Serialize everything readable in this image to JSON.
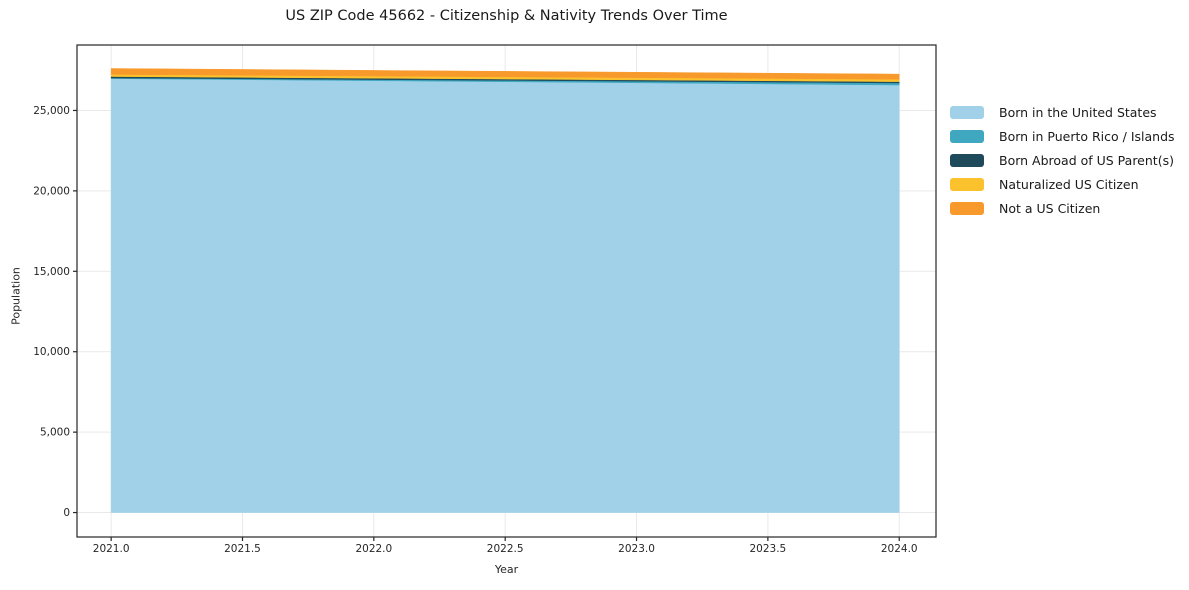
{
  "figure": {
    "title": "US ZIP Code 45662 - Citizenship & Nativity Trends Over Time"
  },
  "chart_data": {
    "type": "area",
    "stacked": true,
    "title": "US ZIP Code 45662 - Citizenship & Nativity Trends Over Time",
    "xlabel": "Year",
    "ylabel": "Population",
    "x": [
      2021,
      2022,
      2023,
      2024
    ],
    "series": [
      {
        "name": "Born in the United States",
        "color": "#A0D1E8",
        "values": [
          26980,
          26850,
          26720,
          26580
        ]
      },
      {
        "name": "Born in Puerto Rico / Islands",
        "color": "#3FA8C0",
        "values": [
          40,
          70,
          100,
          130
        ]
      },
      {
        "name": "Born Abroad of US Parent(s)",
        "color": "#1F4A5C",
        "values": [
          90,
          85,
          80,
          80
        ]
      },
      {
        "name": "Naturalized US Citizen",
        "color": "#FCC22D",
        "values": [
          130,
          135,
          140,
          150
        ]
      },
      {
        "name": "Not a US Citizen",
        "color": "#F8992C",
        "values": [
          370,
          350,
          335,
          320
        ]
      }
    ],
    "totals": [
      27610,
      27490,
      27375,
      27260
    ],
    "xlim": [
      2020.87,
      2024.14
    ],
    "ylim": [
      -1520,
      29070
    ],
    "x_ticks": [
      2021.0,
      2021.5,
      2022.0,
      2022.5,
      2023.0,
      2023.5,
      2024.0
    ],
    "x_tick_labels": [
      "2021.0",
      "2021.5",
      "2022.0",
      "2022.5",
      "2023.0",
      "2023.5",
      "2024.0"
    ],
    "y_ticks": [
      0,
      5000,
      10000,
      15000,
      20000,
      25000
    ],
    "y_tick_labels": [
      "0",
      "5,000",
      "10,000",
      "15,000",
      "20,000",
      "25,000"
    ],
    "grid": true,
    "legend_position": "right-outside",
    "colors": {
      "grid": "#e9e9e9",
      "frame": "#262626",
      "tick_label": "#262626",
      "background": "#ffffff"
    }
  }
}
